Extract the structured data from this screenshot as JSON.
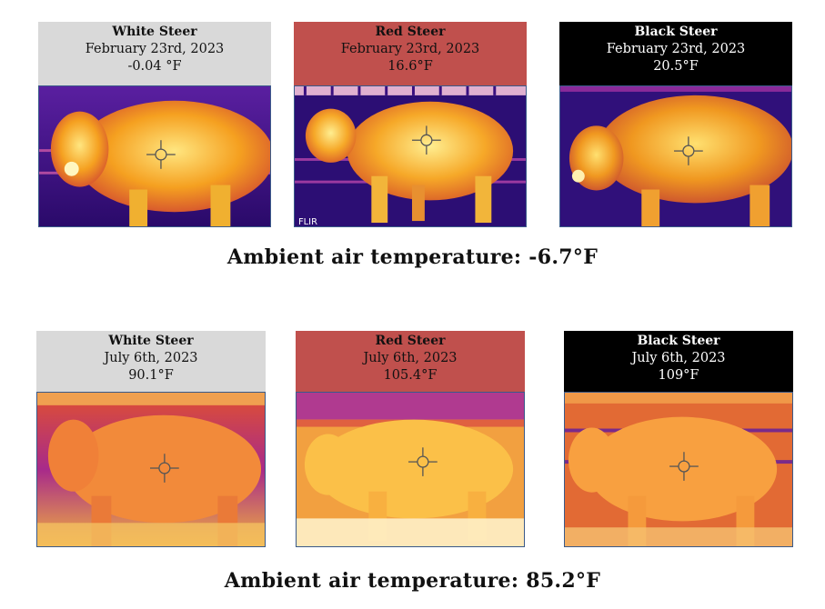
{
  "winter": {
    "panels": [
      {
        "name": "White Steer",
        "date": "February 23rd, 2023",
        "temp": "-0.04 °F",
        "label_color": "#d9d9d9",
        "palette": "winter"
      },
      {
        "name": "Red Steer",
        "date": "February 23rd, 2023",
        "temp": "16.6°F",
        "label_color": "#c0504d",
        "palette": "winter"
      },
      {
        "name": "Black Steer",
        "date": "February 23rd, 2023",
        "temp": "20.5°F",
        "label_color": "#000000",
        "palette": "winter"
      }
    ],
    "ambient": "Ambient air temperature: -6.7°F"
  },
  "summer": {
    "panels": [
      {
        "name": "White Steer",
        "date": "July 6th, 2023",
        "temp": "90.1°F",
        "label_color": "#d9d9d9",
        "palette": "summer"
      },
      {
        "name": "Red Steer",
        "date": "July 6th, 2023",
        "temp": "105.4°F",
        "label_color": "#c0504d",
        "palette": "summer"
      },
      {
        "name": "Black Steer",
        "date": "July 6th, 2023",
        "temp": "109°F",
        "label_color": "#000000",
        "palette": "summer"
      }
    ],
    "ambient": "Ambient air temperature: 85.2°F"
  },
  "icons": {
    "crosshair": "crosshair-icon"
  }
}
